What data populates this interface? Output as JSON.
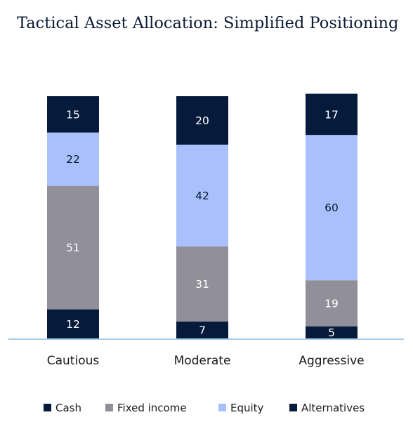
{
  "chart_data": {
    "type": "bar",
    "stacked": true,
    "title": "Tactical Asset Allocation: Simplified Positioning",
    "categories": [
      "Cautious",
      "Moderate",
      "Aggressive"
    ],
    "series": [
      {
        "name": "Cash",
        "values": [
          12,
          7,
          5
        ],
        "color": "#061a3b",
        "label_color": "#ffffff"
      },
      {
        "name": "Fixed income",
        "values": [
          51,
          31,
          19
        ],
        "color": "#918f99",
        "label_color": "#ffffff"
      },
      {
        "name": "Equity",
        "values": [
          22,
          42,
          60
        ],
        "color": "#a8c1fd",
        "label_color": "#0a1a33"
      },
      {
        "name": "Alternatives",
        "values": [
          15,
          20,
          17
        ],
        "color": "#061a3b",
        "label_color": "#ffffff"
      }
    ],
    "ylim": [
      0,
      100
    ],
    "legend_position": "bottom",
    "grid": false,
    "axis_color": "#a9cde6"
  }
}
